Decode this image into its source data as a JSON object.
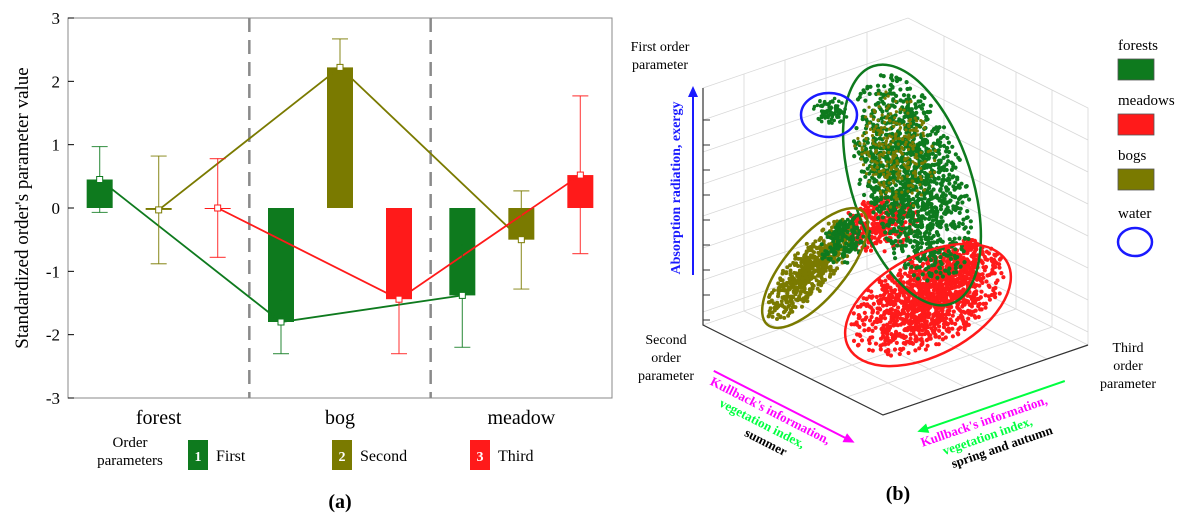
{
  "panel_a": {
    "label": "(a)",
    "legend": {
      "title_line1": "Order",
      "title_line2": "parameters",
      "items": [
        {
          "num": "1",
          "label": "First",
          "color": "#0e7a1e"
        },
        {
          "num": "2",
          "label": "Second",
          "color": "#7a7a00"
        },
        {
          "num": "3",
          "label": "Third",
          "color": "#ff1a1a"
        }
      ]
    }
  },
  "panel_b": {
    "label": "(b)",
    "axis_first_line1": "First order",
    "axis_first_line2": "parameter",
    "axis_second_line1": "Second",
    "axis_second_line2": "order",
    "axis_second_line3": "parameter",
    "axis_third_line1": "Third",
    "axis_third_line2": "order",
    "axis_third_line3": "parameter",
    "vertical_annotation": "Absorption radiation, exergy",
    "left_annotation": [
      "Kullback's information,",
      "vegetation index,",
      "summer"
    ],
    "right_annotation": [
      "Kullback's information,",
      "vegetation index,",
      "spring and autumn"
    ],
    "legend": [
      {
        "label": "forests",
        "color": "#0e7a1e",
        "kind": "box"
      },
      {
        "label": "meadows",
        "color": "#ff1a1a",
        "kind": "box"
      },
      {
        "label": "bogs",
        "color": "#7a7a00",
        "kind": "box"
      },
      {
        "label": "water",
        "color": "#1a1aff",
        "kind": "ellipse"
      }
    ],
    "colors": {
      "magenta": "#ff00ff",
      "green": "#00ff40",
      "blue": "#1a1aff"
    }
  },
  "chart_data": [
    {
      "type": "bar",
      "ylabel": "Standardized order's parameter value",
      "xlabel": "",
      "ylim": [
        -3,
        3
      ],
      "yticks": [
        -3,
        -2,
        -1,
        0,
        1,
        2,
        3
      ],
      "categories": [
        "forest",
        "bog",
        "meadow"
      ],
      "grid": false,
      "series": [
        {
          "name": "First",
          "color": "#0e7a1e",
          "values": [
            0.45,
            -1.8,
            -1.38
          ],
          "err_low": [
            -0.07,
            -2.3,
            -2.2
          ],
          "err_high": [
            0.97,
            -1.3,
            -0.58
          ]
        },
        {
          "name": "Second",
          "color": "#7a7a00",
          "values": [
            -0.03,
            2.22,
            -0.5
          ],
          "err_low": [
            -0.88,
            1.78,
            -1.28
          ],
          "err_high": [
            0.82,
            2.67,
            0.27
          ]
        },
        {
          "name": "Third",
          "color": "#ff1a1a",
          "values": [
            0.0,
            -1.44,
            0.52
          ],
          "err_low": [
            -0.78,
            -2.3,
            -0.72
          ],
          "err_high": [
            0.78,
            -0.28,
            1.77
          ]
        }
      ],
      "bar_numbers": [
        "1",
        "2",
        "3"
      ]
    },
    {
      "type": "scatter",
      "title": "",
      "series": [
        {
          "name": "forests",
          "color": "#0e7a1e"
        },
        {
          "name": "meadows",
          "color": "#ff1a1a"
        },
        {
          "name": "bogs",
          "color": "#7a7a00"
        },
        {
          "name": "water",
          "color": "#1a1aff"
        }
      ]
    }
  ]
}
